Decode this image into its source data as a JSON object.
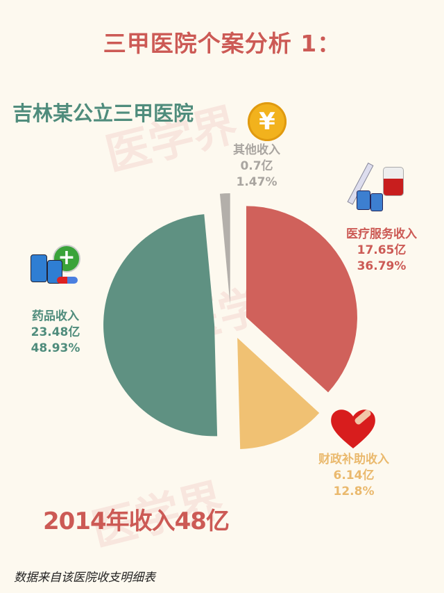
{
  "title": "三甲医院个案分析 1：",
  "subtitle": "吉林某公立三甲医院",
  "total": "2014年收入48亿",
  "source": "数据来自该医院收支明细表",
  "watermark": "医学界",
  "chart_data": {
    "type": "pie",
    "unit": "亿",
    "slices": [
      {
        "label": "医疗服务收入",
        "value": 17.65,
        "value_text": "17.65亿",
        "percent": 36.79,
        "percent_text": "36.79%",
        "color": "#d0615b",
        "icon": "syringe-blood-bag-icon"
      },
      {
        "label": "财政补助收入",
        "value": 6.14,
        "value_text": "6.14亿",
        "percent": 12.8,
        "percent_text": "12.8%",
        "color": "#f0c173",
        "icon": "bandaged-heart-icon"
      },
      {
        "label": "药品收入",
        "value": 23.48,
        "value_text": "23.48亿",
        "percent": 48.93,
        "percent_text": "48.93%",
        "color": "#5f9182",
        "icon": "medicine-bottles-icon"
      },
      {
        "label": "其他收入",
        "value": 0.7,
        "value_text": "0.7亿",
        "percent": 1.47,
        "percent_text": "1.47%",
        "color": "#b3afaa",
        "icon": "yuan-coin-icon"
      }
    ]
  }
}
